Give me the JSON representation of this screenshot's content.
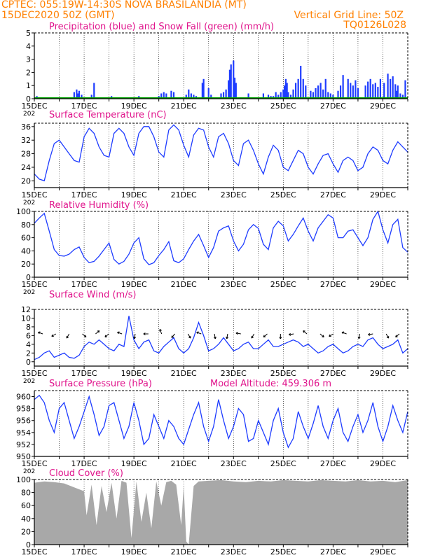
{
  "header": {
    "line1": "CPTEC:   055:19W-14:30S   NOVA BRASILANDIA (MT)",
    "line2": "15DEC2020 50Z (GMT)",
    "grid_note": "Vertical Grid Line: 50Z",
    "code": "TQ0126L028"
  },
  "colors": {
    "header": "#ff8000",
    "title": "#e0148c",
    "series": "#1e3cff",
    "snow": "#00a000",
    "cloud": "#a8a8a8",
    "axis": "#000000"
  },
  "x_axis": {
    "tick_labels": [
      "15DEC",
      "17DEC",
      "19DEC",
      "21DEC",
      "23DEC",
      "25DEC",
      "27DEC",
      "29DEC"
    ],
    "tick_days": [
      0,
      2,
      4,
      6,
      8,
      10,
      12,
      14
    ],
    "year_fragment": "202",
    "day_range": [
      0,
      15
    ]
  },
  "chart_data": [
    {
      "type": "bar",
      "title": "Precipitation (blue) and Snow Fall (green) (mm/h)",
      "ylim": [
        0,
        5
      ],
      "yticks": [
        0,
        1,
        2,
        3,
        4,
        5
      ],
      "series": [
        {
          "name": "Precipitation",
          "x": [
            0.1,
            1.6,
            1.7,
            1.75,
            1.8,
            1.9,
            2.3,
            2.4,
            3.1,
            4.1,
            4.2,
            5.0,
            5.1,
            5.2,
            5.3,
            5.5,
            5.6,
            6.1,
            6.2,
            6.3,
            6.4,
            6.5,
            6.6,
            6.75,
            6.8,
            7.0,
            7.1,
            7.5,
            7.6,
            7.7,
            7.8,
            7.85,
            7.9,
            8.0,
            8.05,
            8.1,
            8.6,
            9.2,
            9.4,
            9.5,
            9.6,
            9.7,
            9.8,
            9.9,
            10.0,
            10.05,
            10.1,
            10.15,
            10.2,
            10.3,
            10.4,
            10.5,
            10.6,
            10.7,
            10.8,
            10.9,
            11.1,
            11.2,
            11.3,
            11.4,
            11.5,
            11.6,
            11.7,
            11.8,
            11.9,
            12.0,
            12.2,
            12.3,
            12.4,
            12.6,
            12.7,
            12.8,
            12.9,
            13.0,
            13.3,
            13.4,
            13.5,
            13.6,
            13.7,
            13.8,
            13.9,
            14.05,
            14.2,
            14.3,
            14.4,
            14.5,
            14.55,
            14.6,
            14.7,
            14.8,
            14.9
          ],
          "values": [
            0.2,
            0.5,
            0.7,
            0.4,
            0.6,
            0.3,
            0.3,
            1.2,
            0.2,
            0.1,
            0.2,
            0.2,
            0.4,
            0.5,
            0.4,
            0.6,
            0.5,
            0.3,
            0.7,
            0.4,
            0.3,
            0.2,
            0.1,
            1.2,
            1.5,
            0.8,
            0.3,
            0.4,
            0.5,
            0.7,
            1.4,
            2.2,
            2.6,
            2.9,
            1.6,
            1.2,
            0.4,
            0.4,
            0.3,
            0.2,
            0.2,
            0.5,
            0.3,
            0.5,
            0.7,
            1.0,
            1.5,
            1.2,
            0.5,
            0.3,
            0.7,
            1.2,
            1.5,
            2.5,
            1.5,
            1.0,
            0.6,
            0.5,
            0.8,
            1.0,
            1.2,
            0.7,
            1.5,
            0.5,
            0.4,
            0.3,
            0.6,
            1.0,
            1.8,
            1.5,
            1.2,
            1.0,
            1.4,
            0.8,
            1.0,
            1.3,
            1.5,
            1.1,
            1.2,
            0.9,
            1.5,
            1.2,
            1.9,
            1.5,
            1.7,
            1.1,
            0.6,
            1.0,
            0.4,
            0.3,
            1.4
          ]
        },
        {
          "name": "Snow Fall",
          "x": [
            0,
            15
          ],
          "values": [
            0,
            0
          ]
        }
      ]
    },
    {
      "type": "line",
      "title": "Surface Temperature (nC)",
      "ylim": [
        18,
        37
      ],
      "yticks": [
        20,
        24,
        28,
        32,
        36
      ],
      "x": [
        0,
        0.2,
        0.4,
        0.6,
        0.8,
        1.0,
        1.2,
        1.4,
        1.6,
        1.8,
        2.0,
        2.2,
        2.4,
        2.6,
        2.8,
        3.0,
        3.2,
        3.4,
        3.6,
        3.8,
        4.0,
        4.2,
        4.4,
        4.6,
        4.8,
        5.0,
        5.2,
        5.4,
        5.6,
        5.8,
        6.0,
        6.2,
        6.4,
        6.6,
        6.8,
        7.0,
        7.2,
        7.4,
        7.6,
        7.8,
        8.0,
        8.2,
        8.4,
        8.6,
        8.8,
        9.0,
        9.2,
        9.4,
        9.6,
        9.8,
        10.0,
        10.2,
        10.4,
        10.6,
        10.8,
        11.0,
        11.2,
        11.4,
        11.6,
        11.8,
        12.0,
        12.2,
        12.4,
        12.6,
        12.8,
        13.0,
        13.2,
        13.4,
        13.6,
        13.8,
        14.0,
        14.2,
        14.4,
        14.6,
        14.8,
        15.0
      ],
      "values": [
        22,
        20.5,
        20,
        26,
        31,
        32,
        30,
        28,
        26,
        25.5,
        33,
        35.5,
        34,
        30,
        27.5,
        27,
        34,
        35.5,
        34,
        30,
        27.5,
        34,
        36,
        36,
        33,
        28.5,
        27,
        35,
        36.5,
        35,
        30.5,
        27,
        33.5,
        35.5,
        35,
        30,
        27,
        33,
        34,
        31,
        26,
        24.5,
        31,
        32,
        29,
        25,
        22,
        27,
        30.5,
        29,
        24,
        23,
        26,
        29,
        28,
        24,
        22,
        25,
        27.5,
        28,
        25,
        22.5,
        26,
        27,
        26,
        23,
        24,
        28,
        30,
        29,
        26,
        25,
        29,
        31.5,
        30,
        28.5
      ]
    },
    {
      "type": "line",
      "title": "Relative Humidity (%)",
      "ylim": [
        0,
        100
      ],
      "yticks": [
        0,
        20,
        40,
        60,
        80,
        100
      ],
      "x": [
        0,
        0.2,
        0.4,
        0.6,
        0.8,
        1.0,
        1.2,
        1.4,
        1.6,
        1.8,
        2.0,
        2.2,
        2.4,
        2.6,
        2.8,
        3.0,
        3.2,
        3.4,
        3.6,
        3.8,
        4.0,
        4.2,
        4.4,
        4.6,
        4.8,
        5.0,
        5.2,
        5.4,
        5.6,
        5.8,
        6.0,
        6.2,
        6.4,
        6.6,
        6.8,
        7.0,
        7.2,
        7.4,
        7.6,
        7.8,
        8.0,
        8.2,
        8.4,
        8.6,
        8.8,
        9.0,
        9.2,
        9.4,
        9.6,
        9.8,
        10.0,
        10.2,
        10.4,
        10.6,
        10.8,
        11.0,
        11.2,
        11.4,
        11.6,
        11.8,
        12.0,
        12.2,
        12.4,
        12.6,
        12.8,
        13.0,
        13.2,
        13.4,
        13.6,
        13.8,
        14.0,
        14.2,
        14.4,
        14.6,
        14.8,
        15.0
      ],
      "values": [
        82,
        90,
        97,
        70,
        42,
        33,
        32,
        35,
        42,
        46,
        30,
        22,
        24,
        32,
        42,
        52,
        27,
        20,
        24,
        35,
        52,
        60,
        28,
        19,
        22,
        33,
        42,
        54,
        25,
        22,
        28,
        42,
        55,
        65,
        48,
        30,
        45,
        70,
        75,
        78,
        55,
        40,
        50,
        72,
        80,
        74,
        50,
        42,
        75,
        85,
        78,
        55,
        65,
        78,
        90,
        70,
        55,
        75,
        85,
        95,
        90,
        60,
        60,
        70,
        72,
        60,
        48,
        60,
        88,
        100,
        72,
        52,
        80,
        88,
        45,
        38
      ]
    },
    {
      "type": "line",
      "title": "Surface Wind (m/s)",
      "ylim": [
        -1,
        12
      ],
      "yticks": [
        0,
        2,
        4,
        6,
        8,
        10,
        12
      ],
      "x": [
        0,
        0.2,
        0.4,
        0.6,
        0.8,
        1.0,
        1.2,
        1.4,
        1.6,
        1.8,
        2.0,
        2.2,
        2.4,
        2.6,
        2.8,
        3.0,
        3.2,
        3.4,
        3.6,
        3.8,
        4.0,
        4.2,
        4.4,
        4.6,
        4.8,
        5.0,
        5.2,
        5.4,
        5.6,
        5.8,
        6.0,
        6.2,
        6.4,
        6.6,
        6.8,
        7.0,
        7.2,
        7.4,
        7.6,
        7.8,
        8.0,
        8.2,
        8.4,
        8.6,
        8.8,
        9.0,
        9.2,
        9.4,
        9.6,
        9.8,
        10.0,
        10.2,
        10.4,
        10.6,
        10.8,
        11.0,
        11.2,
        11.4,
        11.6,
        11.8,
        12.0,
        12.2,
        12.4,
        12.6,
        12.8,
        13.0,
        13.2,
        13.4,
        13.6,
        13.8,
        14.0,
        14.2,
        14.4,
        14.6,
        14.8,
        15.0
      ],
      "values": [
        0.5,
        1.0,
        2.0,
        2.5,
        1.0,
        1.5,
        2.0,
        1.0,
        0.8,
        1.5,
        3.5,
        4.5,
        4.0,
        5.0,
        4.0,
        3.0,
        2.5,
        4.0,
        3.5,
        10.5,
        5.0,
        3.0,
        4.5,
        5.0,
        2.5,
        2.0,
        3.5,
        4.5,
        5.5,
        3.0,
        2.0,
        3.0,
        5.5,
        9.0,
        6.0,
        2.5,
        3.0,
        4.0,
        5.5,
        4.0,
        2.5,
        3.0,
        4.0,
        4.5,
        3.0,
        3.0,
        4.0,
        5.0,
        3.5,
        3.5,
        4.0,
        4.5,
        5.0,
        4.5,
        3.5,
        4.0,
        3.0,
        2.0,
        2.5,
        3.5,
        4.0,
        3.0,
        2.0,
        2.5,
        3.5,
        4.0,
        3.5,
        5.0,
        5.5,
        4.0,
        3.0,
        3.5,
        4.0,
        5.0,
        2.0,
        3.0
      ]
    },
    {
      "type": "line",
      "title": "Surface Pressure (hPa)",
      "subtitle": "Model Altitude: 459.306 m",
      "ylim": [
        950,
        961
      ],
      "yticks": [
        950,
        952,
        954,
        956,
        958,
        960
      ],
      "x": [
        0,
        0.2,
        0.4,
        0.6,
        0.8,
        1.0,
        1.2,
        1.4,
        1.6,
        1.8,
        2.0,
        2.2,
        2.4,
        2.6,
        2.8,
        3.0,
        3.2,
        3.4,
        3.6,
        3.8,
        4.0,
        4.2,
        4.4,
        4.6,
        4.8,
        5.0,
        5.2,
        5.4,
        5.6,
        5.8,
        6.0,
        6.2,
        6.4,
        6.6,
        6.8,
        7.0,
        7.2,
        7.4,
        7.6,
        7.8,
        8.0,
        8.2,
        8.4,
        8.6,
        8.8,
        9.0,
        9.2,
        9.4,
        9.6,
        9.8,
        10.0,
        10.2,
        10.4,
        10.6,
        10.8,
        11.0,
        11.2,
        11.4,
        11.6,
        11.8,
        12.0,
        12.2,
        12.4,
        12.6,
        12.8,
        13.0,
        13.2,
        13.4,
        13.6,
        13.8,
        14.0,
        14.2,
        14.4,
        14.6,
        14.8,
        15.0
      ],
      "values": [
        959.5,
        960.2,
        959,
        956,
        954,
        958,
        959,
        956,
        953,
        955,
        957.5,
        960,
        957,
        953.5,
        955,
        958.5,
        959,
        956,
        953,
        955,
        959,
        956,
        952,
        953,
        957,
        955,
        953,
        956,
        955,
        953,
        952,
        954.5,
        957,
        959,
        955,
        952.5,
        955,
        959.5,
        956,
        953,
        955,
        958,
        957,
        952.5,
        953,
        956,
        954,
        952,
        956,
        958,
        954,
        951.5,
        953,
        957.5,
        955,
        953,
        955.5,
        958.5,
        955,
        953,
        956,
        958,
        954,
        952.5,
        955,
        957,
        954,
        956,
        959,
        955,
        952.5,
        955,
        958.5,
        956,
        954,
        957.5
      ]
    },
    {
      "type": "area",
      "title": "Cloud Cover (%)",
      "ylim": [
        0,
        100
      ],
      "yticks": [
        0,
        20,
        40,
        60,
        80,
        100
      ],
      "x": [
        0,
        0.4,
        0.8,
        1.2,
        1.6,
        2.0,
        2.1,
        2.3,
        2.5,
        2.7,
        2.9,
        3.1,
        3.3,
        3.5,
        3.7,
        3.9,
        4.1,
        4.3,
        4.5,
        4.7,
        4.9,
        5.1,
        5.3,
        5.5,
        5.7,
        5.9,
        6.0,
        6.1,
        6.2,
        6.4,
        6.6,
        7.0,
        7.5,
        8.0,
        8.5,
        9.0,
        9.5,
        10.0,
        10.5,
        11.0,
        11.5,
        12.0,
        12.5,
        13.0,
        13.5,
        14.0,
        14.5,
        15.0
      ],
      "values": [
        95,
        97,
        96,
        94,
        88,
        82,
        45,
        92,
        30,
        90,
        50,
        95,
        40,
        98,
        95,
        10,
        97,
        35,
        80,
        25,
        97,
        60,
        96,
        98,
        92,
        30,
        90,
        5,
        0,
        90,
        97,
        98,
        99,
        97,
        96,
        98,
        97,
        99,
        98,
        97,
        99,
        98,
        97,
        99,
        97,
        98,
        96,
        99
      ]
    }
  ]
}
